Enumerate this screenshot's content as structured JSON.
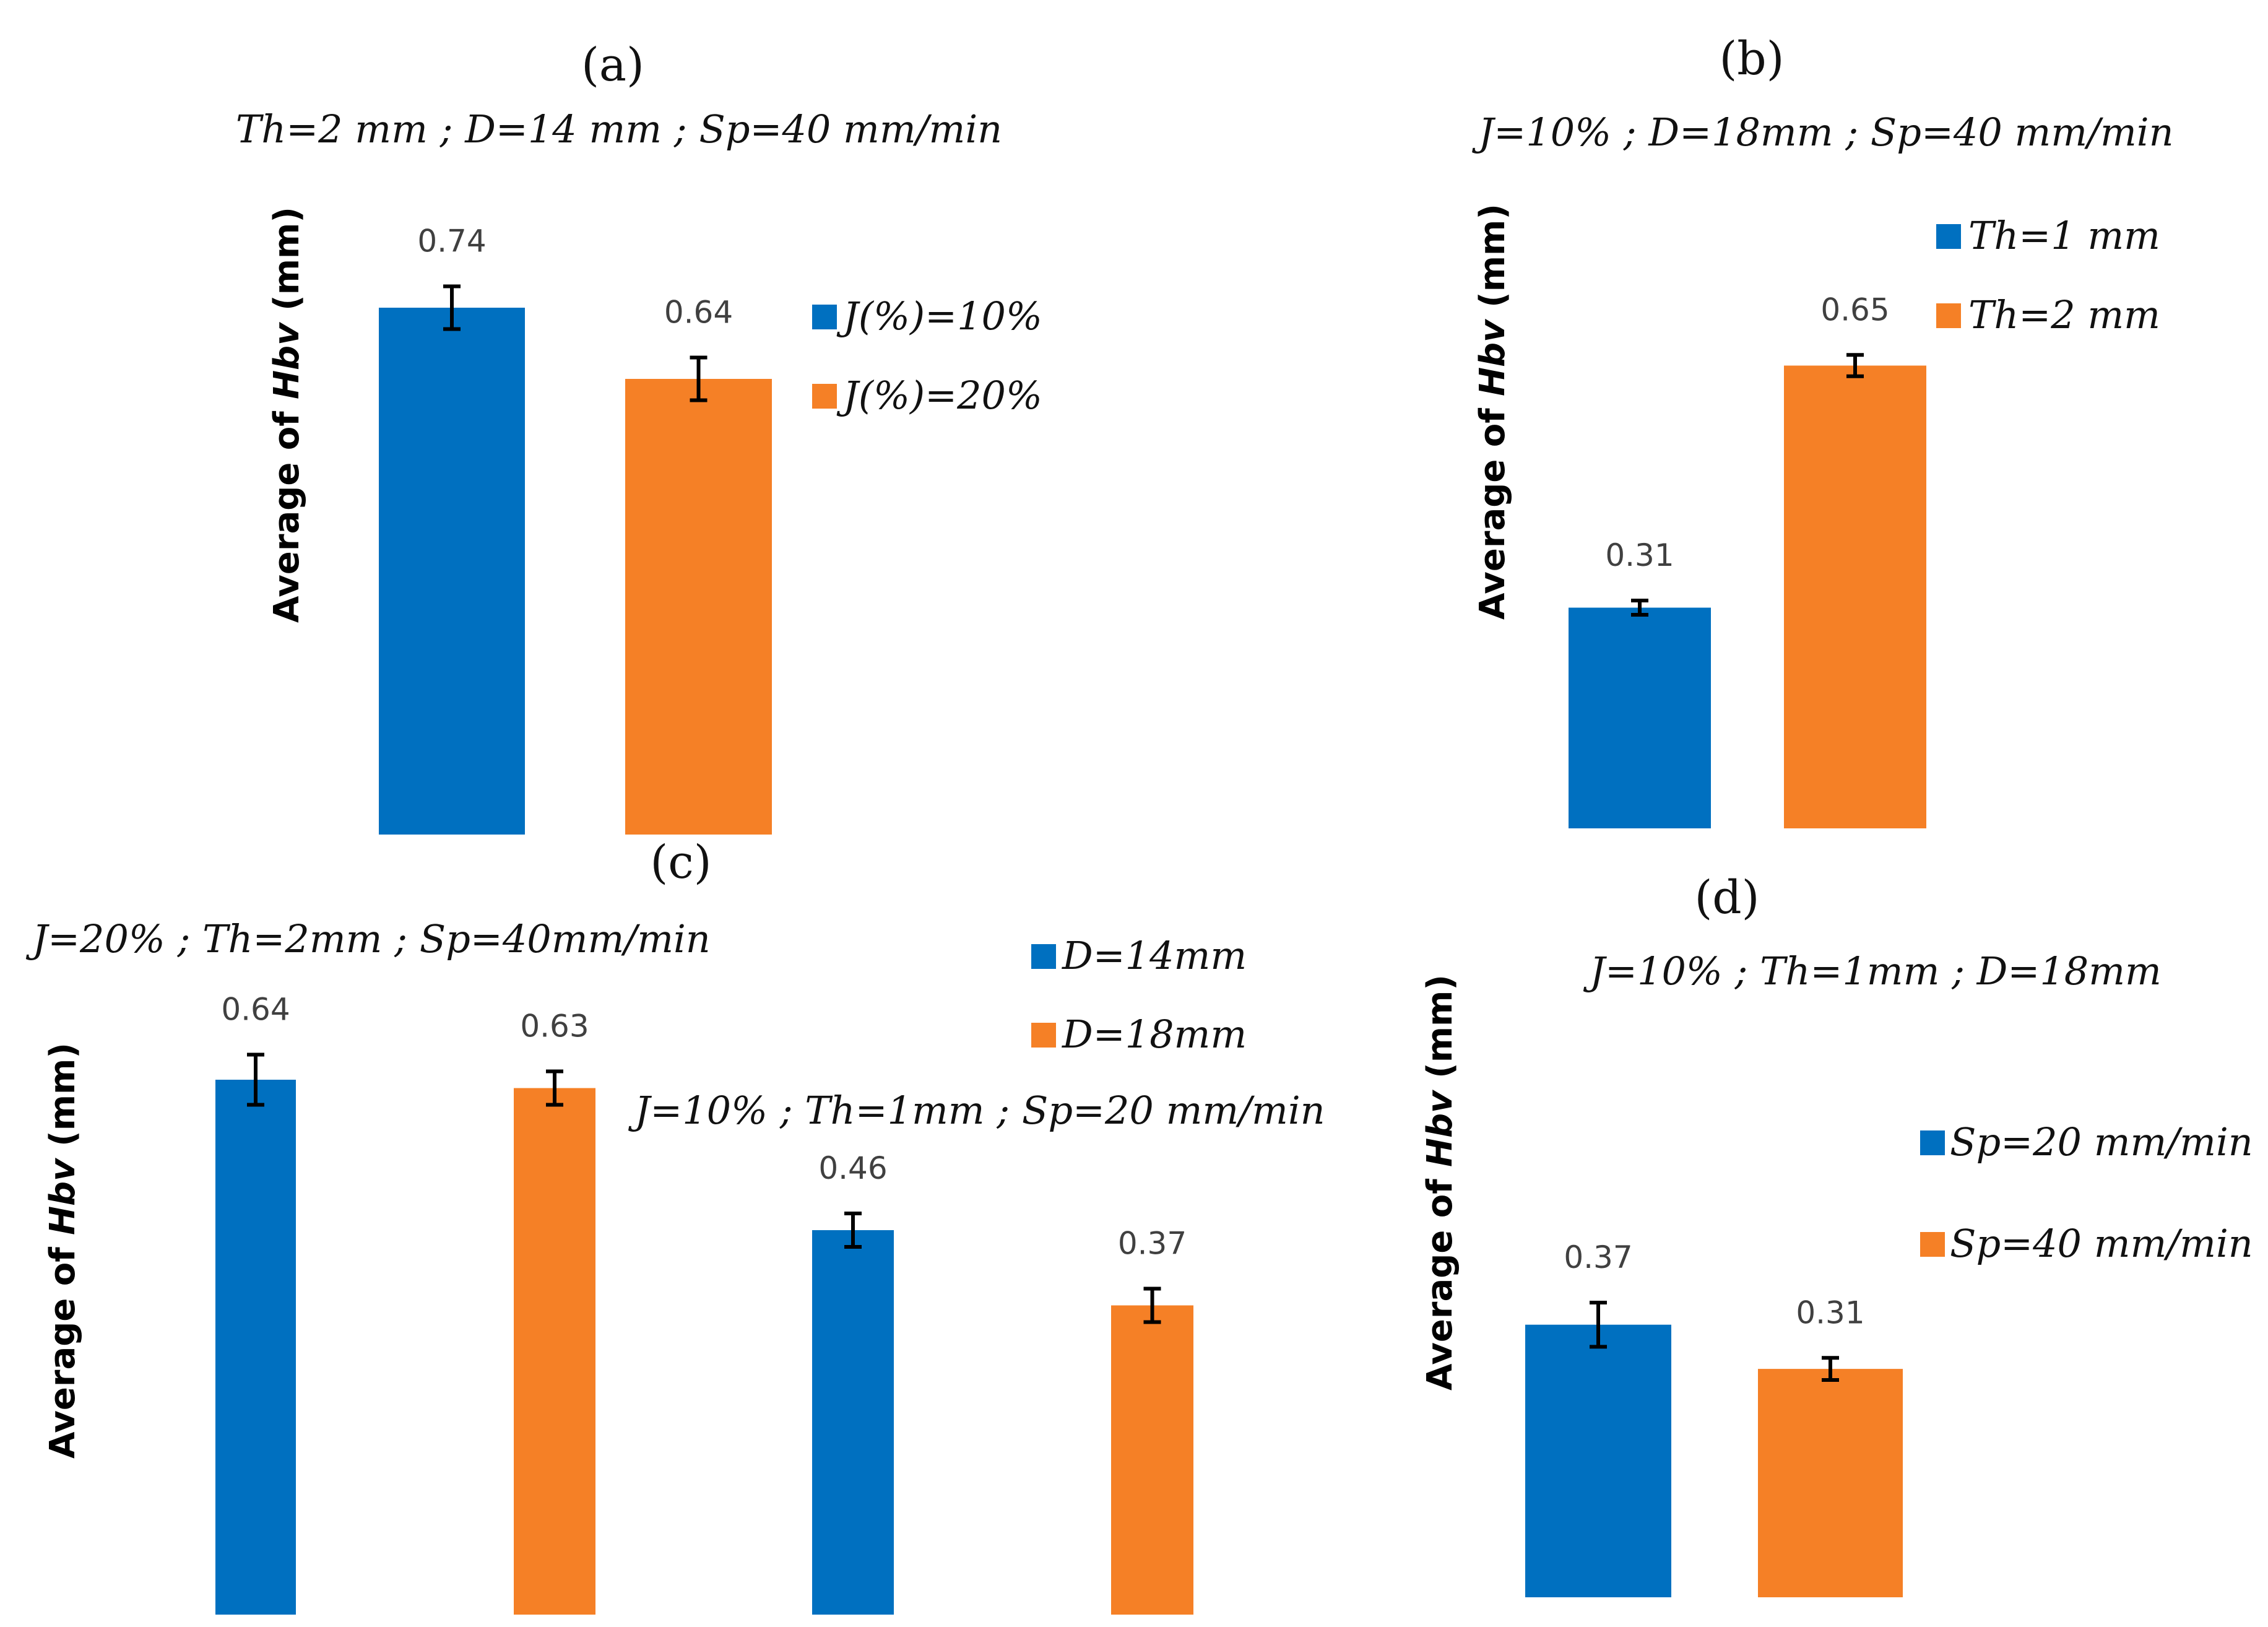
{
  "colors": {
    "blue": "#0070c0",
    "orange": "#f58026"
  },
  "y_axis_label": {
    "prefix": "Average of ",
    "var": "Hbv",
    "unit": " (mm)"
  },
  "chart_data": [
    {
      "type": "bar",
      "panel": "(a)",
      "subtitle": "Th=2 mm ; D=14 mm ; Sp=40 mm/min",
      "ylabel": "Average of Hbv (mm)",
      "ylim": [
        0,
        1
      ],
      "series": [
        {
          "name": "J(%)=10%",
          "values": [
            0.74
          ],
          "error": [
            0.03
          ],
          "color": "#0070c0"
        },
        {
          "name": "J(%)=20%",
          "values": [
            0.64
          ],
          "error": [
            0.03
          ],
          "color": "#f58026"
        }
      ]
    },
    {
      "type": "bar",
      "panel": "(b)",
      "subtitle": "J=10% ; D=18mm ; Sp=40 mm/min",
      "ylabel": "Average of Hbv (mm)",
      "ylim": [
        0,
        1
      ],
      "series": [
        {
          "name": "Th=1 mm",
          "values": [
            0.31
          ],
          "error": [
            0.01
          ],
          "color": "#0070c0"
        },
        {
          "name": "Th=2 mm",
          "values": [
            0.65
          ],
          "error": [
            0.015
          ],
          "color": "#f58026"
        }
      ]
    },
    {
      "type": "bar",
      "panel": "(c)",
      "subtitle": "J=20% ; Th=2mm ; Sp=40mm/min",
      "subtitle2": "J=10% ; Th=1mm ; Sp=20 mm/min",
      "ylabel": "Average of Hbv (mm)",
      "ylim": [
        0,
        1
      ],
      "categories": [
        "J=20% ; Th=2mm ; Sp=40mm/min",
        "J=10% ; Th=1mm ; Sp=20 mm/min"
      ],
      "series": [
        {
          "name": "D=14mm",
          "values": [
            0.64,
            0.46
          ],
          "error": [
            0.03,
            0.02
          ],
          "color": "#0070c0"
        },
        {
          "name": "D=18mm",
          "values": [
            0.63,
            0.37
          ],
          "error": [
            0.02,
            0.02
          ],
          "color": "#f58026"
        }
      ]
    },
    {
      "type": "bar",
      "panel": "(d)",
      "subtitle": "J=10% ; Th=1mm ; D=18mm",
      "ylabel": "Average of Hbv (mm)",
      "ylim": [
        0,
        1
      ],
      "series": [
        {
          "name": "Sp=20 mm/min",
          "values": [
            0.37
          ],
          "error": [
            0.03
          ],
          "color": "#0070c0"
        },
        {
          "name": "Sp=40 mm/min",
          "values": [
            0.31
          ],
          "error": [
            0.015
          ],
          "color": "#f58026"
        }
      ]
    }
  ]
}
